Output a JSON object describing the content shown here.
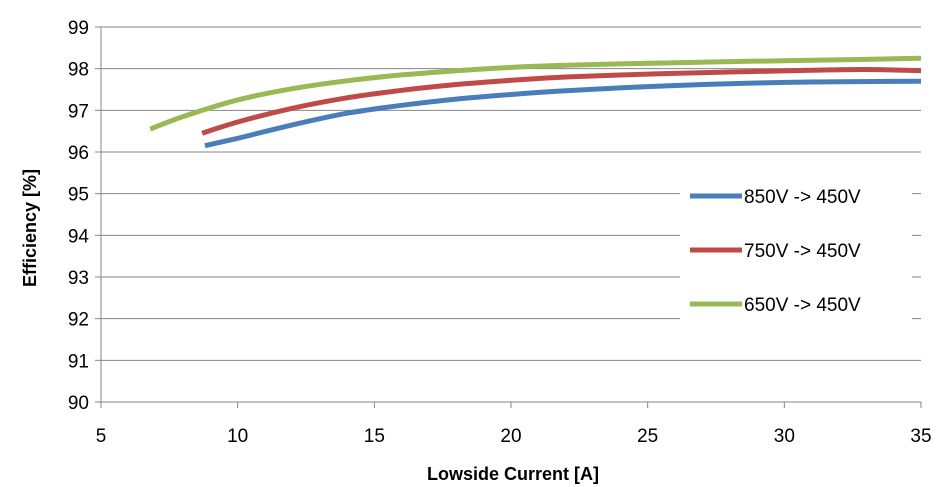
{
  "chart_data": {
    "type": "line",
    "title": "",
    "xlabel": "Lowside Current [A]",
    "ylabel": "Efficiency [%]",
    "xlim": [
      5,
      35
    ],
    "ylim": [
      90,
      99
    ],
    "xticks": [
      5,
      10,
      15,
      20,
      25,
      30,
      35
    ],
    "yticks": [
      90,
      91,
      92,
      93,
      94,
      95,
      96,
      97,
      98,
      99
    ],
    "grid": "horizontal",
    "legend_position": "right",
    "series": [
      {
        "name": "850V -> 450V",
        "color": "#4a7ebb",
        "x": [
          8.8,
          10,
          12,
          14,
          16,
          18,
          20,
          22,
          25,
          28,
          31,
          35
        ],
        "y": [
          96.15,
          96.33,
          96.65,
          96.93,
          97.12,
          97.27,
          97.38,
          97.47,
          97.57,
          97.64,
          97.68,
          97.7
        ]
      },
      {
        "name": "750V -> 450V",
        "color": "#be4b48",
        "x": [
          8.7,
          10,
          12,
          14,
          16,
          18,
          20,
          22,
          25,
          28,
          31,
          33,
          35
        ],
        "y": [
          96.45,
          96.72,
          97.05,
          97.3,
          97.48,
          97.62,
          97.72,
          97.8,
          97.87,
          97.92,
          97.96,
          97.98,
          97.95
        ]
      },
      {
        "name": "650V -> 450V",
        "color": "#98b954",
        "x": [
          6.8,
          8,
          10,
          12,
          14,
          16,
          18,
          20,
          22,
          25,
          28,
          31,
          35
        ],
        "y": [
          96.55,
          96.85,
          97.25,
          97.52,
          97.71,
          97.85,
          97.95,
          98.03,
          98.08,
          98.13,
          98.17,
          98.2,
          98.25
        ]
      }
    ]
  }
}
